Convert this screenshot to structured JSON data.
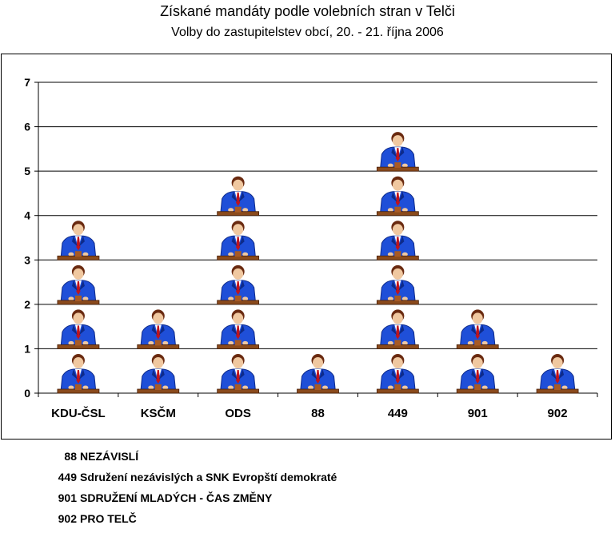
{
  "chart_data": {
    "type": "bar",
    "title": "Získané mandáty podle volebních stran v Telči",
    "subtitle": "Volby do zastupitelstev obcí, 20. - 21. října 2006",
    "categories": [
      "KDU-ČSL",
      "KSČM",
      "ODS",
      "88",
      "449",
      "901",
      "902"
    ],
    "values": [
      4,
      2,
      5,
      1,
      6,
      2,
      1
    ],
    "ylim": [
      0,
      7
    ],
    "yticks": [
      "0",
      "1",
      "2",
      "3",
      "4",
      "5",
      "6",
      "7"
    ],
    "grid": true,
    "mark_icon": "politician-at-podium-icon"
  },
  "legend": [
    {
      "code": "88",
      "label": "NEZÁVISLÍ"
    },
    {
      "code": "449",
      "label": "Sdružení nezávislých a SNK Evropští demokraté"
    },
    {
      "code": "901",
      "label": "SDRUŽENÍ MLADÝCH - ČAS ZMĚNY"
    },
    {
      "code": "902",
      "label": "PRO TELČ"
    }
  ],
  "colors": {
    "suit": "#1f4fd8",
    "suit_dark": "#0d2a8a",
    "podium": "#8a4a1c",
    "tie": "#c0141c",
    "skin": "#f0c8a0",
    "hair": "#6a2a10"
  }
}
